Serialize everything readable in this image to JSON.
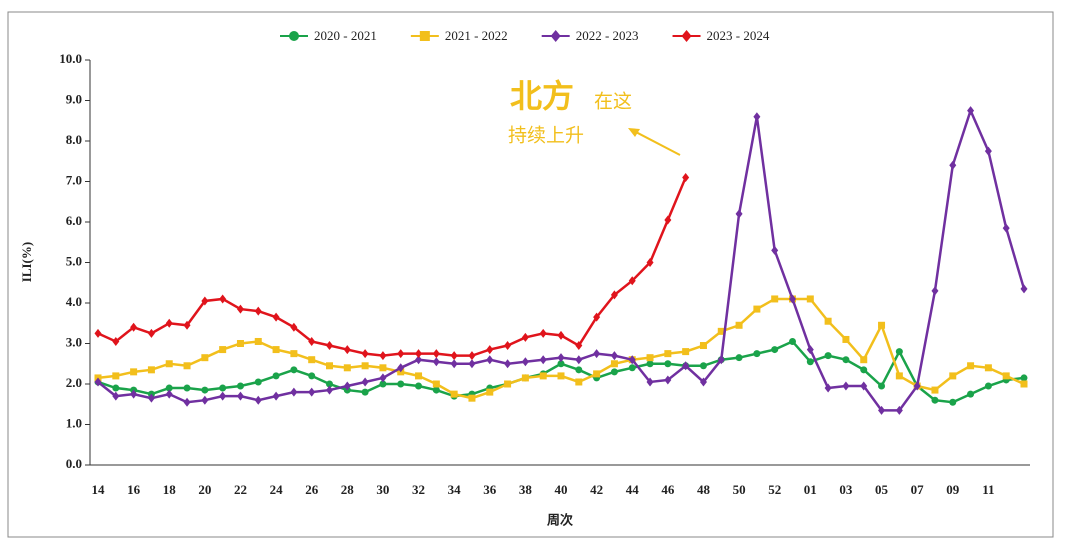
{
  "chart_data": {
    "type": "line",
    "xlabel": "周次",
    "ylabel": "ILI(%)",
    "annotations": [
      "北方",
      "在这",
      "持续上升"
    ],
    "categories": [
      "14",
      null,
      "16",
      null,
      "18",
      null,
      "20",
      null,
      "22",
      null,
      "24",
      null,
      "26",
      null,
      "28",
      null,
      "30",
      null,
      "32",
      null,
      "34",
      null,
      "36",
      null,
      "38",
      null,
      "40",
      null,
      "42",
      null,
      "44",
      null,
      "46",
      null,
      "48",
      null,
      "50",
      null,
      "52",
      null,
      "01",
      null,
      "03",
      null,
      "05",
      null,
      "07",
      null,
      "09",
      null,
      "11",
      null,
      null
    ],
    "ylim": [
      0,
      10
    ],
    "yticks": [
      {
        "value": 0,
        "label": "0.0"
      },
      {
        "value": 1,
        "label": "1.0"
      },
      {
        "value": 2,
        "label": "2.0"
      },
      {
        "value": 3,
        "label": "3.0"
      },
      {
        "value": 4,
        "label": "4.0"
      },
      {
        "value": 5,
        "label": "5.0"
      },
      {
        "value": 6,
        "label": "6.0"
      },
      {
        "value": 7,
        "label": "7.0"
      },
      {
        "value": 8,
        "label": "8.0"
      },
      {
        "value": 9,
        "label": "9.0"
      },
      {
        "value": 10,
        "label": "10.0"
      }
    ],
    "legend": "top",
    "series": [
      {
        "name": "2020 - 2021",
        "color": "#1aa34a",
        "marker": "circle",
        "values": [
          2.05,
          1.9,
          1.85,
          1.75,
          1.9,
          1.9,
          1.85,
          1.9,
          1.95,
          2.05,
          2.2,
          2.35,
          2.2,
          2.0,
          1.85,
          1.8,
          2.0,
          2.0,
          1.95,
          1.85,
          1.7,
          1.75,
          1.9,
          2.0,
          2.15,
          2.25,
          2.5,
          2.35,
          2.15,
          2.3,
          2.4,
          2.5,
          2.5,
          2.45,
          2.45,
          2.6,
          2.65,
          2.75,
          2.85,
          3.05,
          2.55,
          2.7,
          2.6,
          2.35,
          1.95,
          2.8,
          1.95,
          1.6,
          1.55,
          1.75,
          1.95,
          2.1,
          2.15
        ]
      },
      {
        "name": "2021 - 2022",
        "color": "#f2bf1c",
        "marker": "square",
        "values": [
          2.15,
          2.2,
          2.3,
          2.35,
          2.5,
          2.45,
          2.65,
          2.85,
          3.0,
          3.05,
          2.85,
          2.75,
          2.6,
          2.45,
          2.4,
          2.45,
          2.4,
          2.3,
          2.2,
          2.0,
          1.75,
          1.65,
          1.8,
          2.0,
          2.15,
          2.2,
          2.2,
          2.05,
          2.25,
          2.5,
          2.6,
          2.65,
          2.75,
          2.8,
          2.95,
          3.3,
          3.45,
          3.85,
          4.1,
          4.1,
          4.1,
          3.55,
          3.1,
          2.6,
          3.45,
          2.2,
          1.95,
          1.85,
          2.2,
          2.45,
          2.4,
          2.2,
          2.0
        ]
      },
      {
        "name": "2022 - 2023",
        "color": "#7030a0",
        "marker": "diamond",
        "values": [
          2.05,
          1.7,
          1.75,
          1.65,
          1.75,
          1.55,
          1.6,
          1.7,
          1.7,
          1.6,
          1.7,
          1.8,
          1.8,
          1.85,
          1.95,
          2.05,
          2.15,
          2.4,
          2.6,
          2.55,
          2.5,
          2.5,
          2.6,
          2.5,
          2.55,
          2.6,
          2.65,
          2.6,
          2.75,
          2.7,
          2.6,
          2.05,
          2.1,
          2.45,
          2.05,
          2.6,
          6.2,
          8.6,
          5.3,
          4.1,
          2.85,
          1.9,
          1.95,
          1.95,
          1.35,
          1.35,
          1.95,
          4.3,
          7.4,
          8.75,
          7.75,
          5.85,
          4.35
        ]
      },
      {
        "name": "2023 - 2024",
        "color": "#e0141c",
        "marker": "diamond",
        "values": [
          3.25,
          3.05,
          3.4,
          3.25,
          3.5,
          3.45,
          4.05,
          4.1,
          3.85,
          3.8,
          3.65,
          3.4,
          3.05,
          2.95,
          2.85,
          2.75,
          2.7,
          2.75,
          2.75,
          2.75,
          2.7,
          2.7,
          2.85,
          2.95,
          3.15,
          3.25,
          3.2,
          2.95,
          3.65,
          4.2,
          4.55,
          5.0,
          6.05,
          7.1,
          null,
          null,
          null,
          null,
          null,
          null,
          null,
          null,
          null,
          null,
          null,
          null,
          null,
          null,
          null,
          null,
          null,
          null,
          null
        ]
      }
    ]
  }
}
